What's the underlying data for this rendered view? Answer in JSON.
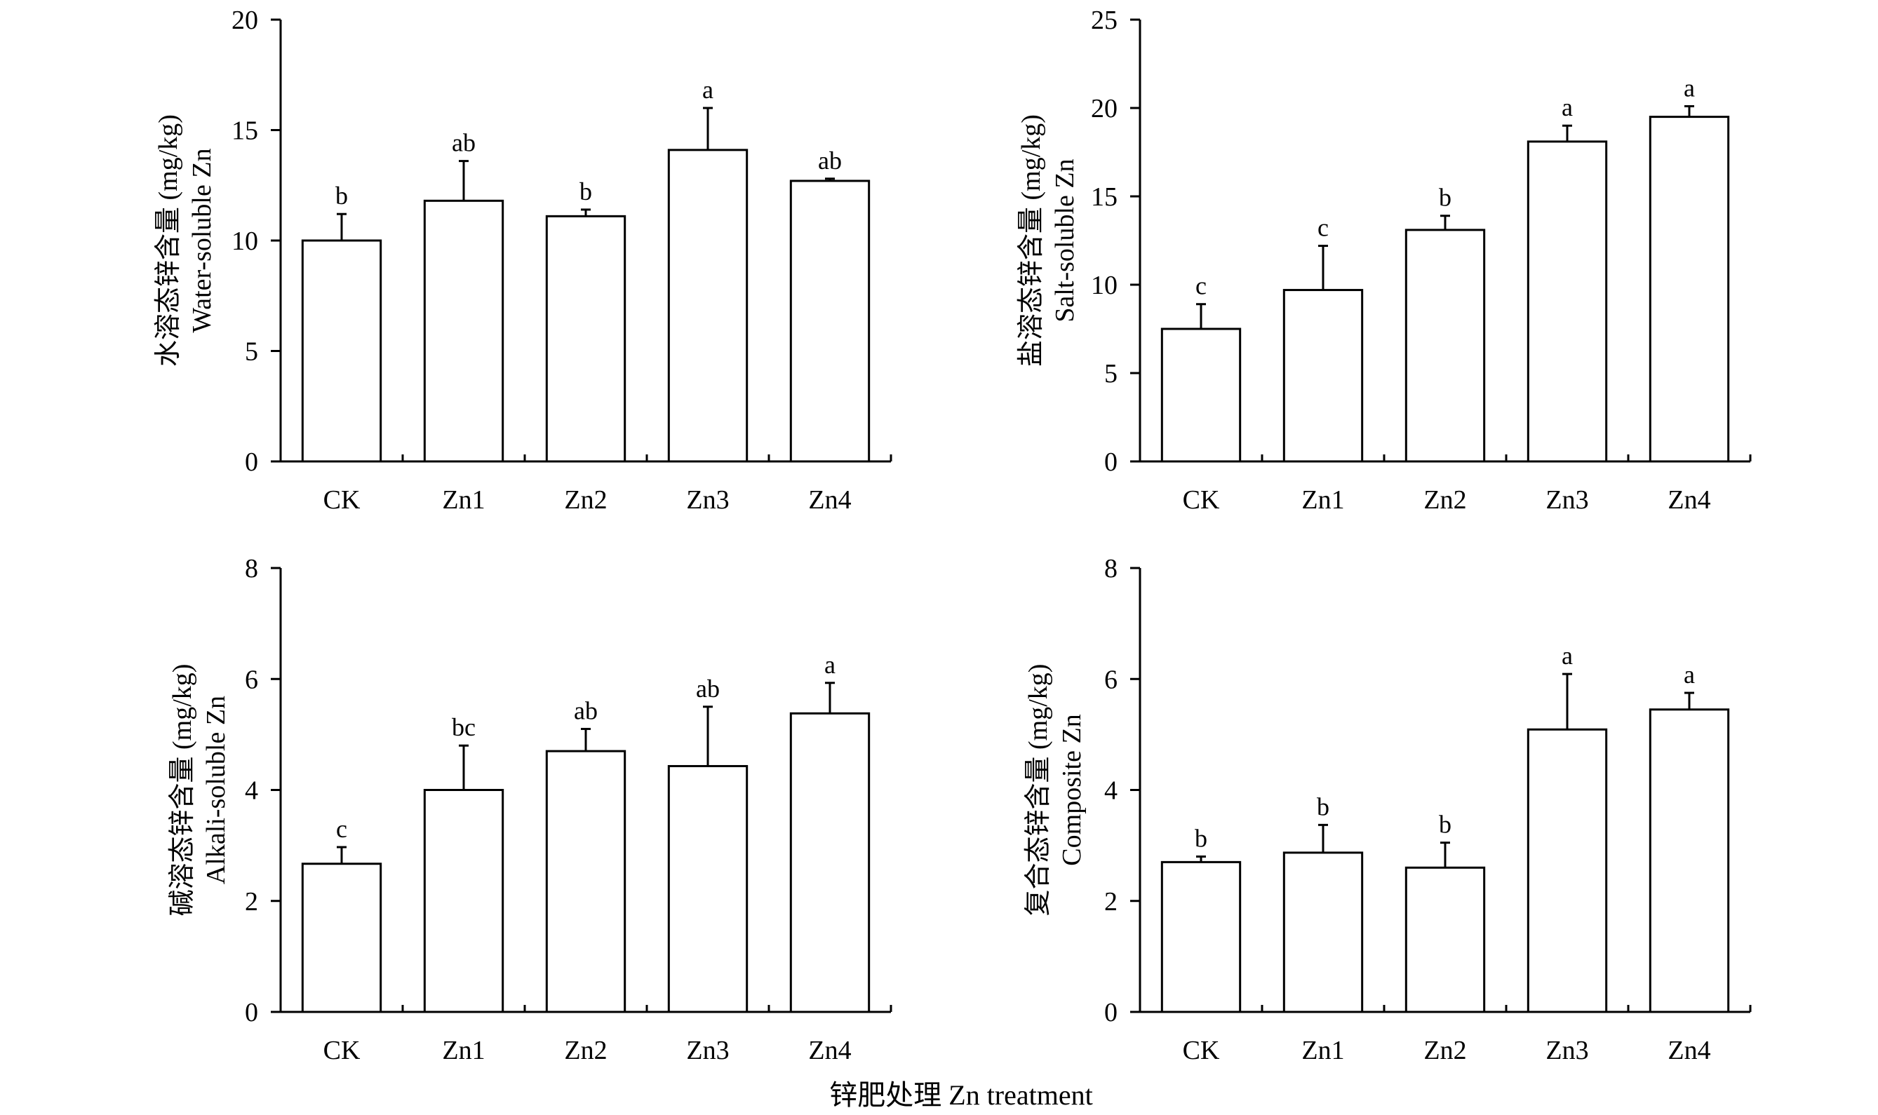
{
  "figure": {
    "xlabel": "锌肥处理 Zn treatment"
  },
  "chart_data": [
    {
      "type": "bar",
      "ylabel_cn": "水溶态锌含量 (mg/kg)",
      "ylabel_en": "Water-soluble Zn",
      "ylim": [
        0,
        20
      ],
      "yticks": [
        0,
        5,
        10,
        15,
        20
      ],
      "categories": [
        "CK",
        "Zn1",
        "Zn2",
        "Zn3",
        "Zn4"
      ],
      "values": [
        10.0,
        11.8,
        11.1,
        14.1,
        12.7
      ],
      "errors": [
        1.2,
        1.8,
        0.3,
        1.9,
        0.1
      ],
      "significance": [
        "b",
        "ab",
        "b",
        "a",
        "ab"
      ]
    },
    {
      "type": "bar",
      "ylabel_cn": "盐溶态锌含量 (mg/kg)",
      "ylabel_en": "Salt-soluble Zn",
      "ylim": [
        0,
        25
      ],
      "yticks": [
        0,
        5,
        10,
        15,
        20,
        25
      ],
      "categories": [
        "CK",
        "Zn1",
        "Zn2",
        "Zn3",
        "Zn4"
      ],
      "values": [
        7.5,
        9.7,
        13.1,
        18.1,
        19.5
      ],
      "errors": [
        1.4,
        2.5,
        0.8,
        0.9,
        0.6
      ],
      "significance": [
        "c",
        "c",
        "b",
        "a",
        "a"
      ]
    },
    {
      "type": "bar",
      "ylabel_cn": "碱溶态锌含量 (mg/kg)",
      "ylabel_en": "Alkali-soluble Zn",
      "ylim": [
        0,
        8
      ],
      "yticks": [
        0,
        2,
        4,
        6,
        8
      ],
      "categories": [
        "CK",
        "Zn1",
        "Zn2",
        "Zn3",
        "Zn4"
      ],
      "values": [
        2.67,
        4.0,
        4.7,
        4.43,
        5.38
      ],
      "errors": [
        0.3,
        0.8,
        0.4,
        1.07,
        0.55
      ],
      "significance": [
        "c",
        "bc",
        "ab",
        "ab",
        "a"
      ]
    },
    {
      "type": "bar",
      "ylabel_cn": "复合态锌含量 (mg/kg)",
      "ylabel_en": "Composite Zn",
      "ylim": [
        0,
        8
      ],
      "yticks": [
        0,
        2,
        4,
        6,
        8
      ],
      "categories": [
        "CK",
        "Zn1",
        "Zn2",
        "Zn3",
        "Zn4"
      ],
      "values": [
        2.7,
        2.87,
        2.6,
        5.09,
        5.45
      ],
      "errors": [
        0.1,
        0.5,
        0.45,
        1.0,
        0.3
      ],
      "significance": [
        "b",
        "b",
        "b",
        "a",
        "a"
      ]
    }
  ]
}
